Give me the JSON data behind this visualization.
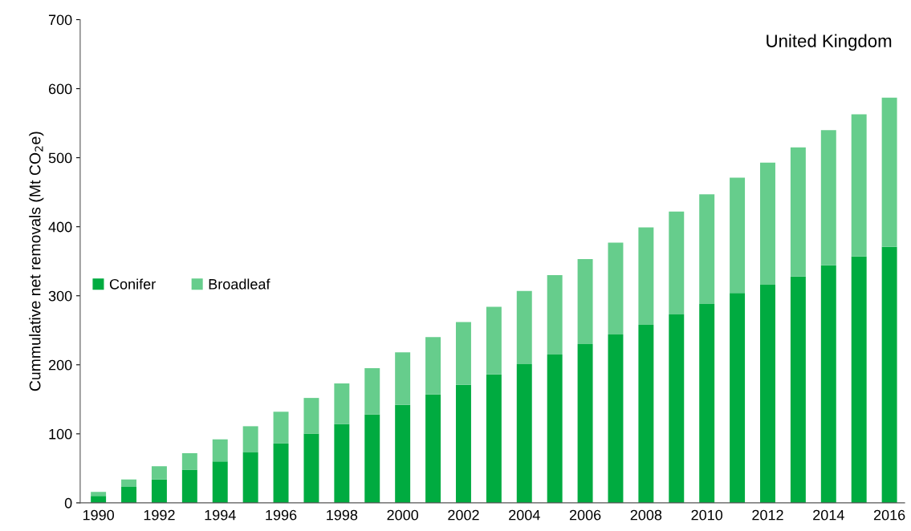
{
  "chart_data": {
    "type": "bar",
    "stacked": true,
    "title": "United Kingdom",
    "ylabel": "Cummulative net removals (Mt CO$_{2}$e)",
    "categories": [
      "1990",
      null,
      "1992",
      null,
      "1994",
      null,
      "1996",
      null,
      "1998",
      null,
      "2000",
      null,
      "2002",
      null,
      "2004",
      null,
      "2006",
      null,
      "2008",
      null,
      "2010",
      null,
      "2012",
      null,
      "2014",
      null,
      "2016"
    ],
    "series": [
      {
        "name": "Conifer",
        "color": "#00ab40",
        "values": [
          10,
          23,
          34,
          48,
          60,
          73,
          86,
          100,
          114,
          128,
          142,
          157,
          171,
          186,
          201,
          215,
          230,
          244,
          258,
          273,
          288,
          304,
          316,
          328,
          344,
          357,
          371
        ]
      },
      {
        "name": "Broadleaf",
        "color": "#66cd8c",
        "values": [
          6,
          11,
          19,
          24,
          32,
          38,
          46,
          52,
          59,
          67,
          76,
          83,
          91,
          98,
          106,
          115,
          123,
          133,
          141,
          149,
          159,
          167,
          177,
          187,
          196,
          206,
          216
        ]
      }
    ],
    "ylim": [
      0,
      700
    ],
    "yticks": [
      0,
      100,
      200,
      300,
      400,
      500,
      600,
      700
    ],
    "grid": false,
    "legend": "left"
  }
}
